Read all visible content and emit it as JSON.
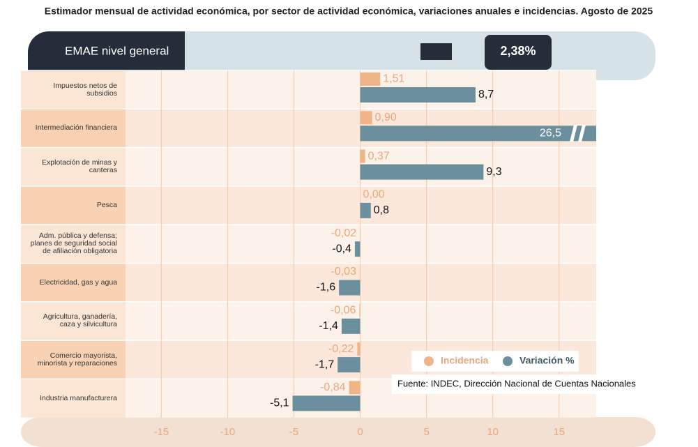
{
  "chart_data": {
    "type": "bar",
    "orientation": "horizontal",
    "title": "Estimador mensual de actividad económica, por sector de actividad económica, variaciones anuales e incidencias. Agosto de 2025",
    "headline": {
      "label": "EMAE nivel general",
      "value_label": "2,38%"
    },
    "categories": [
      "Impuestos netos de subsidios",
      "Intermediación financiera",
      "Explotación de minas y canteras",
      "Pesca",
      "Adm. pública y defensa; planes de seguridad social de afiliación obligatoria",
      "Electricidad, gas y agua",
      "Agricultura, ganadería, caza y silvicultura",
      "Comercio mayorista, minorista y reparaciones",
      "Industria manufacturera"
    ],
    "series": [
      {
        "name": "Incidencia",
        "color": "#f0b489",
        "values": [
          1.51,
          0.9,
          0.37,
          0.0,
          -0.02,
          -0.03,
          -0.06,
          -0.22,
          -0.84
        ],
        "value_labels": [
          "1,51",
          "0,90",
          "0,37",
          "0,00",
          "-0,02",
          "-0,03",
          "-0,06",
          "-0,22",
          "-0,84"
        ]
      },
      {
        "name": "Variación %",
        "color": "#6b8f9c",
        "values": [
          8.7,
          26.5,
          9.3,
          0.8,
          -0.4,
          -1.6,
          -1.4,
          -1.7,
          -5.1
        ],
        "value_labels": [
          "8,7",
          "26,5",
          "9,3",
          "0,8",
          "-0,4",
          "-1,6",
          "-1,4",
          "-1,7",
          "-5,1"
        ]
      }
    ],
    "xlim": [
      -17.7,
      17.8
    ],
    "xticks": [
      -15,
      -10,
      -5,
      0,
      5,
      10,
      15
    ],
    "grid": true,
    "source": "Fuente: INDEC, Dirección Nacional de Cuentas Nacionales"
  }
}
